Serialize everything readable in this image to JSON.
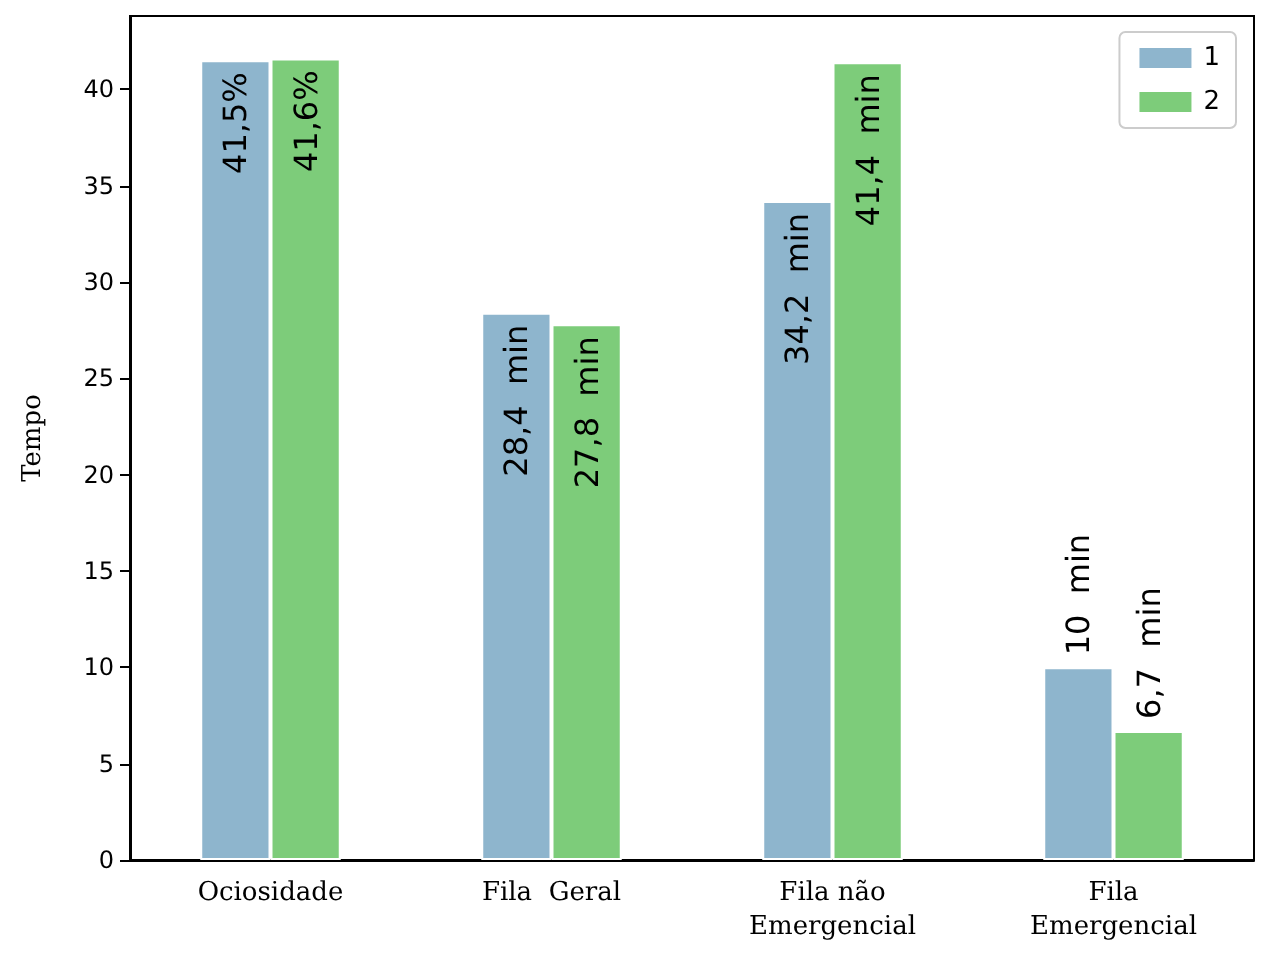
{
  "chart_data": {
    "type": "bar",
    "ylabel": "Tempo",
    "categories": [
      "Ociosidade",
      "Fila  Geral",
      "Fila não\nEmergencial",
      "Fila\nEmergencial"
    ],
    "series": [
      {
        "name": "1",
        "color": "#8eb5cd",
        "values": [
          41.5,
          28.4,
          34.2,
          10
        ],
        "value_labels": [
          "41,5%",
          "28,4  min",
          "34,2  min",
          "10  min"
        ]
      },
      {
        "name": "2",
        "color": "#7dcc7a",
        "values": [
          41.6,
          27.8,
          41.4,
          6.7
        ],
        "value_labels": [
          "41,6%",
          "27,8  min",
          "41,4  min",
          "6,7  min"
        ]
      }
    ],
    "ylim": [
      0,
      43.8
    ],
    "yticks": [
      0,
      5,
      10,
      15,
      20,
      25,
      30,
      35,
      40
    ],
    "legend": "top right",
    "grid": false
  }
}
